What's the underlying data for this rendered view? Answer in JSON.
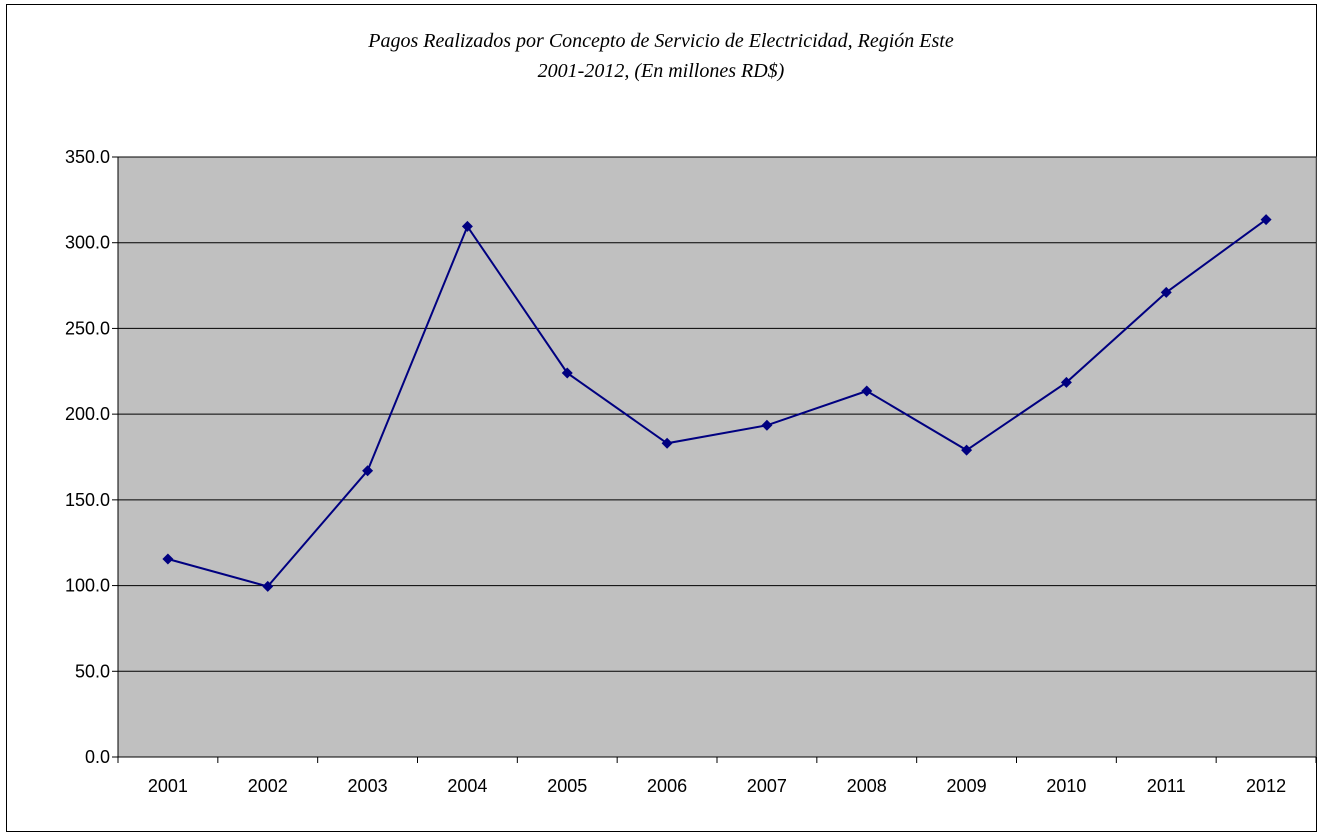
{
  "chart_data": {
    "type": "line",
    "title_line1": "Pagos Realizados por Concepto de Servicio de Electricidad, Región Este",
    "title_line2": "2001-2012, (En millones RD$)",
    "categories": [
      "2001",
      "2002",
      "2003",
      "2004",
      "2005",
      "2006",
      "2007",
      "2008",
      "2009",
      "2010",
      "2011",
      "2012"
    ],
    "series": [
      {
        "values": [
          115.5,
          99.5,
          167.0,
          309.5,
          224.0,
          183.0,
          193.5,
          213.5,
          179.0,
          218.5,
          271.0,
          313.5
        ],
        "color": "#000080"
      }
    ],
    "ylim": [
      0,
      350
    ],
    "yticks": [
      "0.0",
      "50.0",
      "100.0",
      "150.0",
      "200.0",
      "250.0",
      "300.0",
      "350.0"
    ],
    "grid": true,
    "plot_background": "#c0c0c0",
    "legend": "none"
  }
}
